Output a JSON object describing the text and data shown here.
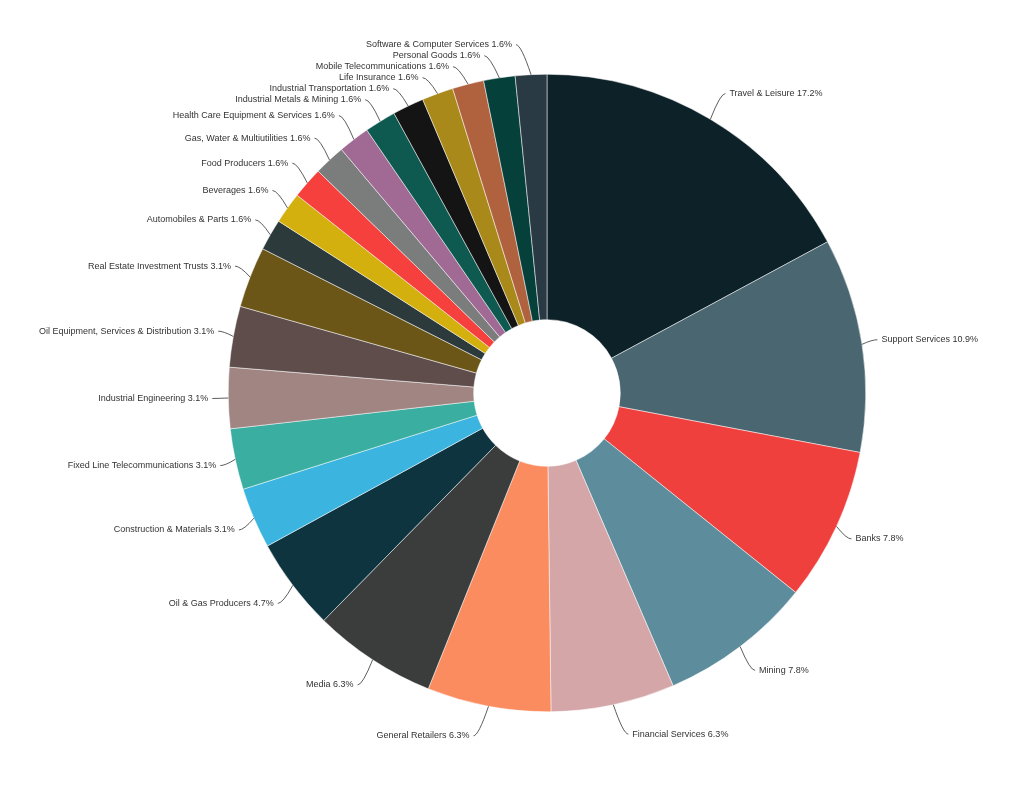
{
  "chart_data": {
    "type": "donut",
    "categories": [
      "Travel & Leisure",
      "Support Services",
      "Banks",
      "Mining",
      "Financial Services",
      "General Retailers",
      "Media",
      "Oil & Gas Producers",
      "Construction & Materials",
      "Fixed Line Telecommunications",
      "Industrial Engineering",
      "Oil Equipment, Services & Distribution",
      "Real Estate Investment Trusts",
      "Automobiles & Parts",
      "Beverages",
      "Food Producers",
      "Gas, Water & Multiutilities",
      "Health Care Equipment & Services",
      "Industrial Metals & Mining",
      "Industrial Transportation",
      "Life Insurance",
      "Mobile Telecommunications",
      "Personal Goods",
      "Software & Computer Services"
    ],
    "values": [
      17.2,
      10.9,
      7.8,
      7.8,
      6.3,
      6.3,
      6.3,
      4.7,
      3.1,
      3.1,
      3.1,
      3.1,
      3.1,
      1.6,
      1.6,
      1.6,
      1.6,
      1.6,
      1.6,
      1.6,
      1.6,
      1.6,
      1.6,
      1.6
    ],
    "value_labels": [
      "17.2%",
      "10.9%",
      "7.8%",
      "7.8%",
      "6.3%",
      "6.3%",
      "6.3%",
      "4.7%",
      "3.1%",
      "3.1%",
      "3.1%",
      "3.1%",
      "3.1%",
      "1.6%",
      "1.6%",
      "1.6%",
      "1.6%",
      "1.6%",
      "1.6%",
      "1.6%",
      "1.6%",
      "1.6%",
      "1.6%",
      "1.6%"
    ],
    "colors": [
      "#0d2128",
      "#4a6670",
      "#f0403e",
      "#5d8d9c",
      "#d4a6a8",
      "#fb8c5f",
      "#3a3d3c",
      "#0e3440",
      "#3bb5e0",
      "#3aaea0",
      "#a08582",
      "#5e4d4b",
      "#6b5618",
      "#2c3a3c",
      "#d4b00e",
      "#f5403e",
      "#7a7d7c",
      "#a06a95",
      "#0f5a50",
      "#141414",
      "#a8891a",
      "#b0623f",
      "#06403a",
      "#2a3a44"
    ],
    "legend": false
  }
}
